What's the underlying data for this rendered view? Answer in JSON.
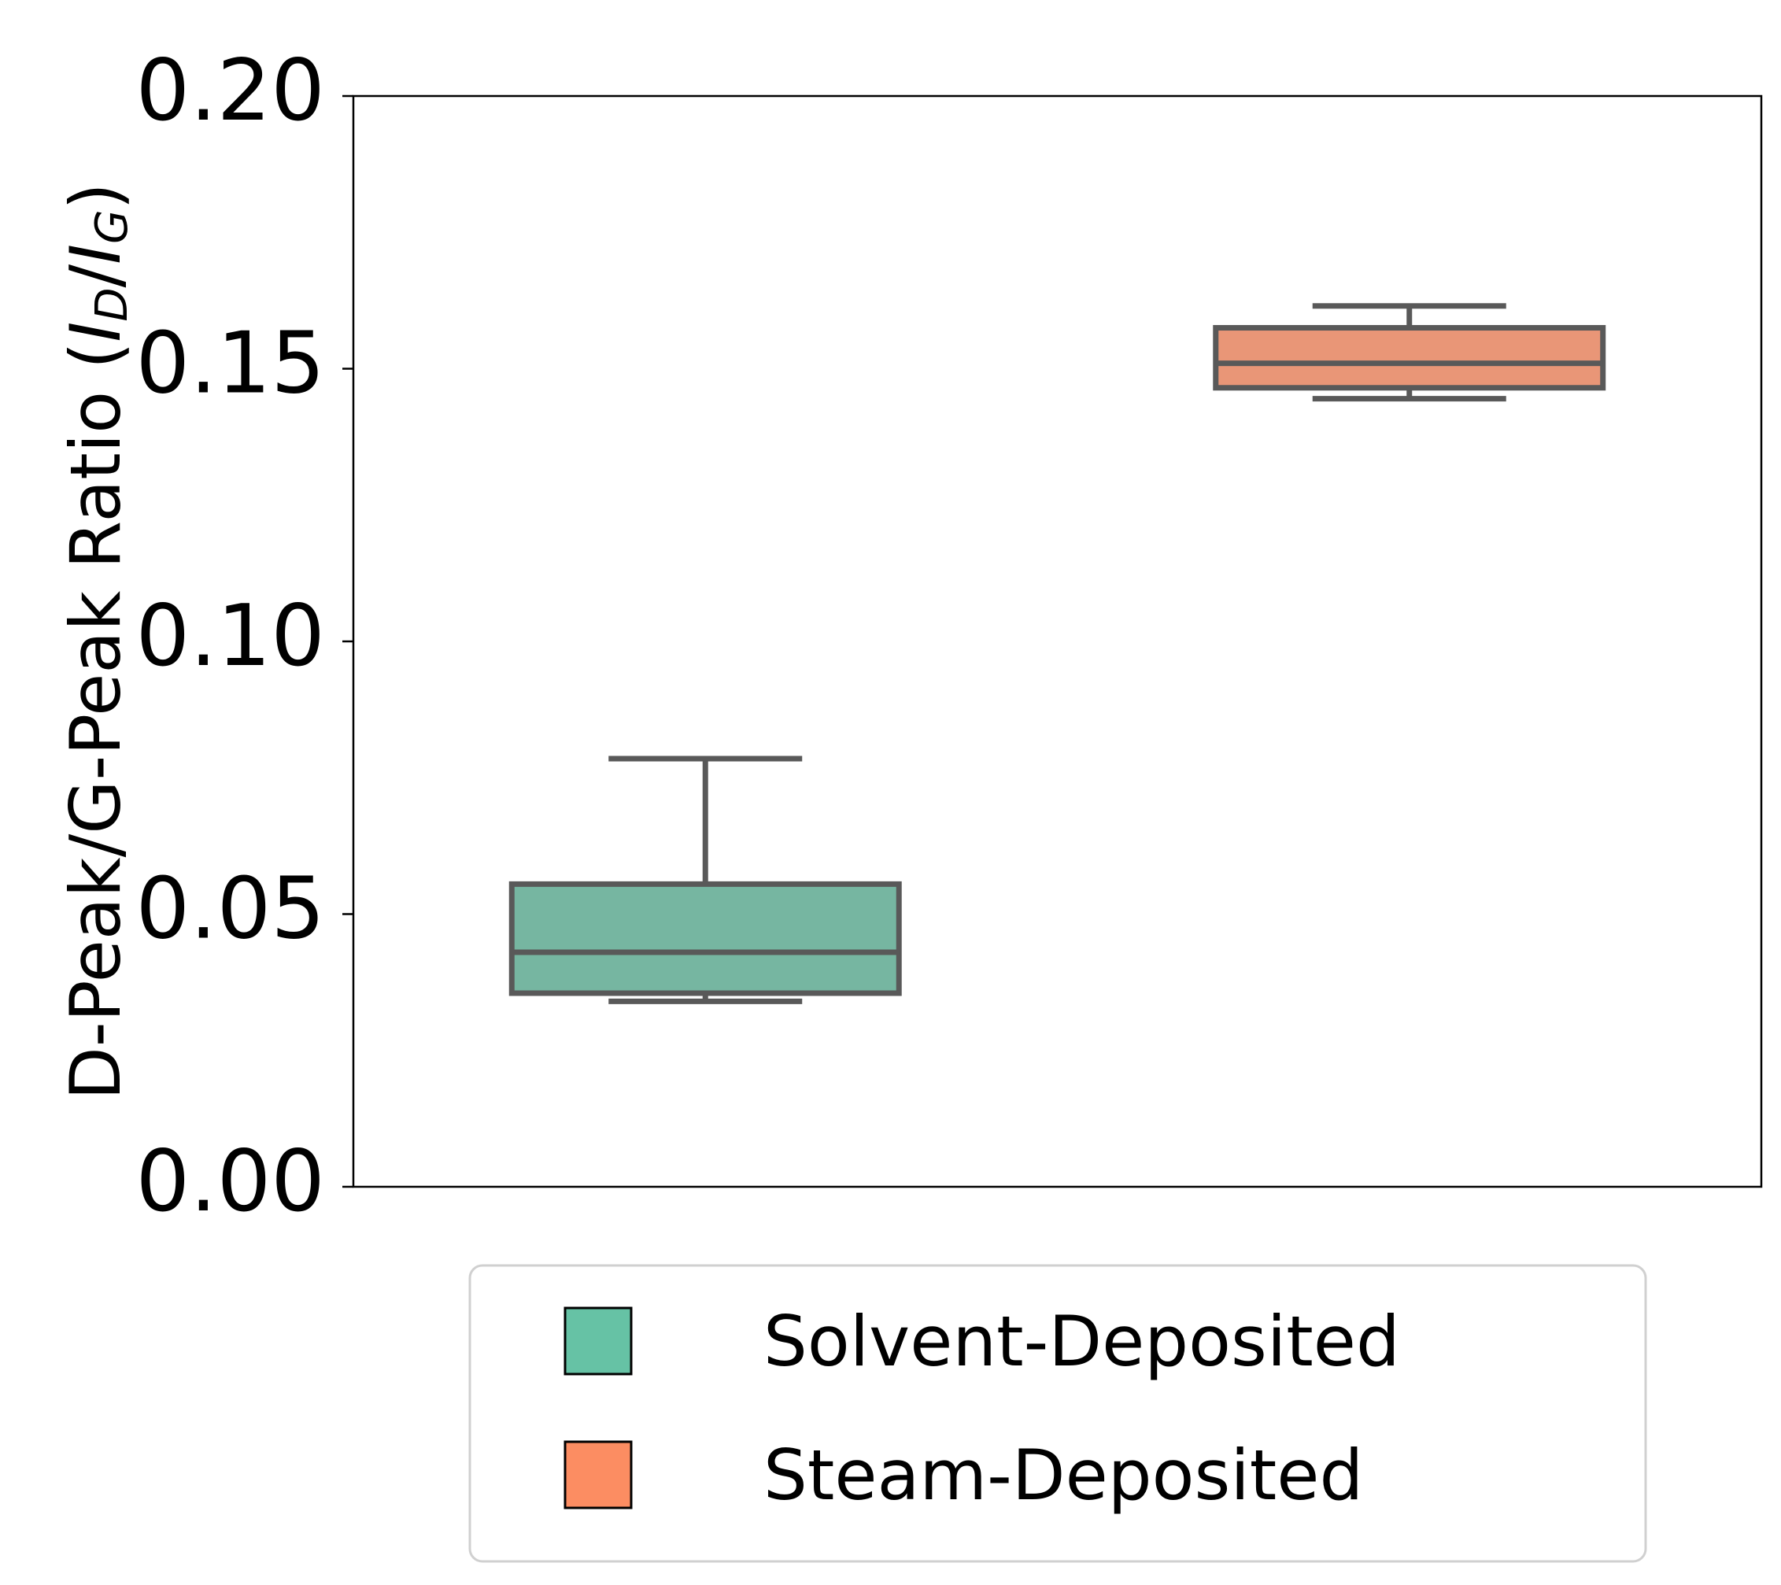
{
  "chart_data": {
    "type": "box",
    "title": "",
    "xlabel": "",
    "ylabel": {
      "main": "D-Peak/G-Peak Ratio (",
      "italic": "I",
      "sub_d": "D",
      "sep": "/",
      "italic2": "I",
      "sub_g": "G",
      "close": ")"
    },
    "ylim": [
      0,
      0.2
    ],
    "yticks": [
      "0.00",
      "0.05",
      "0.10",
      "0.15",
      "0.20"
    ],
    "ytick_values": [
      0,
      0.05,
      0.1,
      0.15,
      0.2
    ],
    "grid": false,
    "legend_position": "bottom-center",
    "series": [
      {
        "name": "Solvent-Deposited",
        "color": "#66c2a5",
        "box_color": "#76b6a1",
        "whisker_low": 0.034,
        "q1": 0.0355,
        "median": 0.043,
        "q3": 0.0555,
        "whisker_high": 0.0785
      },
      {
        "name": "Steam-Deposited",
        "color": "#fc8d62",
        "box_color": "#e99677",
        "whisker_low": 0.1445,
        "q1": 0.1465,
        "median": 0.151,
        "q3": 0.1575,
        "whisker_high": 0.1615
      }
    ],
    "edge_color": "#595959"
  }
}
